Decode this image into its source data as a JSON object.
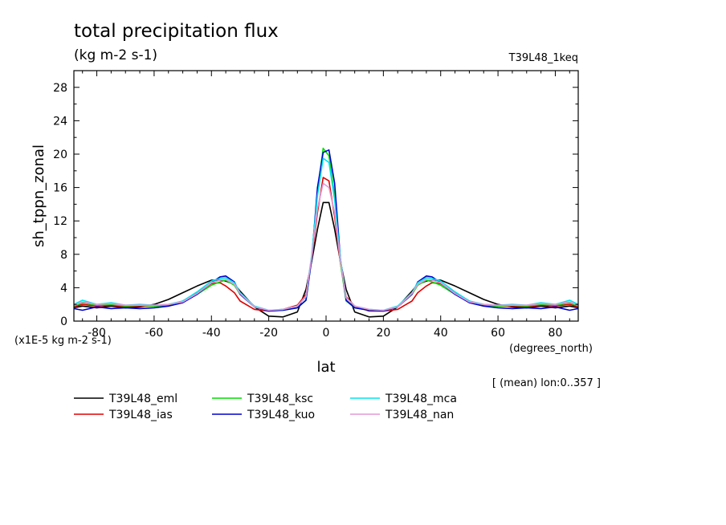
{
  "chart_data": {
    "type": "line",
    "title": "total precipitation flux",
    "subtitle": "(kg m-2 s-1)",
    "run_label": "T39L48_1keq",
    "xlabel": "lat",
    "ylabel": "sh_tppn_zonal",
    "x_units": "(degrees_north)",
    "y_scale_label": "(x1E-5 kg m-2 s-1)",
    "footnote": "[ (mean) lon:0..357 ]",
    "xlim": [
      -88,
      88
    ],
    "ylim": [
      0,
      30
    ],
    "xticks": [
      -80,
      -60,
      -40,
      -20,
      0,
      20,
      40,
      60,
      80
    ],
    "yticks": [
      0,
      4,
      8,
      12,
      16,
      20,
      24,
      28
    ],
    "grid": false,
    "legend_position": "bottom",
    "x": [
      -88,
      -85,
      -80,
      -75,
      -70,
      -65,
      -60,
      -55,
      -50,
      -45,
      -40,
      -37,
      -35,
      -32,
      -30,
      -25,
      -20,
      -15,
      -10,
      -7,
      -5,
      -3,
      -1,
      1,
      3,
      5,
      7,
      10,
      15,
      20,
      25,
      30,
      32,
      35,
      37,
      40,
      45,
      50,
      55,
      60,
      65,
      70,
      75,
      80,
      85,
      88
    ],
    "series": [
      {
        "name": "T39L48_eml",
        "color": "#000000",
        "values": [
          1.6,
          1.8,
          1.6,
          1.8,
          1.6,
          1.7,
          2.0,
          2.6,
          3.4,
          4.2,
          4.9,
          4.9,
          4.8,
          4.4,
          3.6,
          1.7,
          0.6,
          0.5,
          1.1,
          3.8,
          7.2,
          11.0,
          14.2,
          14.2,
          11.0,
          7.2,
          3.8,
          1.1,
          0.5,
          0.6,
          1.7,
          3.6,
          4.4,
          4.8,
          4.9,
          4.9,
          4.2,
          3.4,
          2.6,
          2.0,
          1.7,
          1.6,
          1.8,
          1.6,
          1.8,
          1.6
        ]
      },
      {
        "name": "T39L48_ias",
        "color": "#e00000",
        "values": [
          1.7,
          2.0,
          1.8,
          1.9,
          1.7,
          1.8,
          1.8,
          1.9,
          2.4,
          3.4,
          4.5,
          4.6,
          4.2,
          3.4,
          2.4,
          1.4,
          1.2,
          1.4,
          1.9,
          3.2,
          7.5,
          13.0,
          17.2,
          16.8,
          12.5,
          7.0,
          2.9,
          1.8,
          1.2,
          1.2,
          1.4,
          2.4,
          3.4,
          4.2,
          4.6,
          4.5,
          3.4,
          2.4,
          1.9,
          1.8,
          1.8,
          1.7,
          1.9,
          1.8,
          2.0,
          1.7
        ]
      },
      {
        "name": "T39L48_ksc",
        "color": "#00dd00",
        "values": [
          1.8,
          2.2,
          1.9,
          2.0,
          1.8,
          1.9,
          1.8,
          1.9,
          2.3,
          3.2,
          4.3,
          4.7,
          4.9,
          4.3,
          3.2,
          1.7,
          1.2,
          1.3,
          1.6,
          2.5,
          7.5,
          15.5,
          20.7,
          19.8,
          15.0,
          7.0,
          2.4,
          1.6,
          1.3,
          1.2,
          1.7,
          3.2,
          4.3,
          4.9,
          4.7,
          4.3,
          3.2,
          2.3,
          1.9,
          1.8,
          1.9,
          1.8,
          2.0,
          1.9,
          2.2,
          1.8
        ]
      },
      {
        "name": "T39L48_kuo",
        "color": "#0000cc",
        "values": [
          1.5,
          1.3,
          1.7,
          1.5,
          1.6,
          1.5,
          1.6,
          1.8,
          2.2,
          3.2,
          4.6,
          5.3,
          5.4,
          4.7,
          3.2,
          1.7,
          1.2,
          1.3,
          1.6,
          2.5,
          7.5,
          16.0,
          20.2,
          20.5,
          16.5,
          7.5,
          2.5,
          1.6,
          1.3,
          1.2,
          1.7,
          3.2,
          4.7,
          5.4,
          5.3,
          4.6,
          3.2,
          2.2,
          1.8,
          1.6,
          1.5,
          1.6,
          1.5,
          1.7,
          1.3,
          1.5
        ]
      },
      {
        "name": "T39L48_mca",
        "color": "#00e5ee",
        "values": [
          2.0,
          2.5,
          2.0,
          2.2,
          1.9,
          2.0,
          1.9,
          2.0,
          2.4,
          3.5,
          4.8,
          5.1,
          5.2,
          4.6,
          3.4,
          1.8,
          1.3,
          1.4,
          1.8,
          2.9,
          8.0,
          15.0,
          19.5,
          19.0,
          14.5,
          7.5,
          2.8,
          1.8,
          1.4,
          1.3,
          1.8,
          3.4,
          4.6,
          5.2,
          5.1,
          4.8,
          3.5,
          2.4,
          2.0,
          1.9,
          2.0,
          1.9,
          2.2,
          2.0,
          2.5,
          2.0
        ]
      },
      {
        "name": "T39L48_nan",
        "color": "#e399d6",
        "values": [
          1.9,
          2.3,
          2.0,
          2.1,
          1.9,
          1.9,
          1.9,
          2.0,
          2.3,
          3.3,
          4.6,
          4.9,
          5.0,
          4.4,
          3.3,
          1.7,
          1.3,
          1.4,
          1.8,
          3.0,
          7.8,
          13.5,
          16.5,
          16.0,
          13.0,
          7.2,
          2.8,
          1.8,
          1.4,
          1.3,
          1.7,
          3.3,
          4.4,
          5.0,
          4.9,
          4.6,
          3.3,
          2.3,
          2.0,
          1.9,
          1.9,
          1.9,
          2.1,
          2.0,
          2.3,
          1.9
        ]
      }
    ]
  }
}
